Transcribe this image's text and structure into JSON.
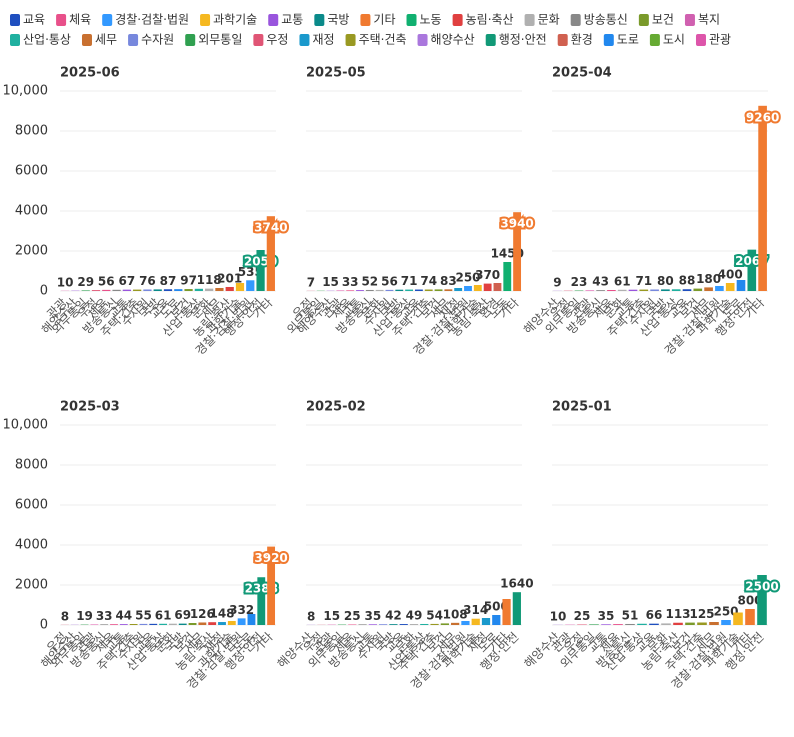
{
  "legend": [
    {
      "name": "교육",
      "color": "#1f4fbf"
    },
    {
      "name": "체육",
      "color": "#e8508a"
    },
    {
      "name": "경찰·검찰·법원",
      "color": "#3399ff"
    },
    {
      "name": "과학기술",
      "color": "#f5b820"
    },
    {
      "name": "교통",
      "color": "#9955dd"
    },
    {
      "name": "국방",
      "color": "#0a8a8a"
    },
    {
      "name": "기타",
      "color": "#f07a30"
    },
    {
      "name": "노동",
      "color": "#10b070"
    },
    {
      "name": "농림·축산",
      "color": "#e04040"
    },
    {
      "name": "문화",
      "color": "#b0b0b0"
    },
    {
      "name": "방송통신",
      "color": "#888888"
    },
    {
      "name": "보건",
      "color": "#7a9a2a"
    },
    {
      "name": "복지",
      "color": "#d060b0"
    },
    {
      "name": "산업·통상",
      "color": "#20b0a0"
    },
    {
      "name": "세무",
      "color": "#c87030"
    },
    {
      "name": "수자원",
      "color": "#7788dd"
    },
    {
      "name": "외무통일",
      "color": "#30a050"
    },
    {
      "name": "우정",
      "color": "#e05575"
    },
    {
      "name": "재정",
      "color": "#1a99cc"
    },
    {
      "name": "주택·건축",
      "color": "#999922"
    },
    {
      "name": "해양수산",
      "color": "#aa77dd"
    },
    {
      "name": "행정·안전",
      "color": "#119977"
    },
    {
      "name": "환경",
      "color": "#d06050"
    },
    {
      "name": "도로",
      "color": "#2288ee"
    },
    {
      "name": "도시",
      "color": "#66aa33"
    },
    {
      "name": "관광",
      "color": "#dd55aa"
    }
  ],
  "chart_data": [
    {
      "type": "bar",
      "title": "2025-06",
      "categories": [
        "관광",
        "해양수산",
        "외무통일",
        "우정",
        "체육",
        "방송통신",
        "교통",
        "주택·건축",
        "수자원",
        "국방",
        "교육",
        "도로",
        "보건",
        "산업·통상",
        "문화",
        "세무",
        "농림·축산",
        "과학기술",
        "경찰·검찰·법원",
        "행정·안전",
        "기타"
      ],
      "values": [
        10,
        20,
        29,
        45,
        56,
        60,
        67,
        70,
        76,
        80,
        87,
        92,
        97,
        110,
        118,
        150,
        201,
        400,
        535,
        2050,
        3740
      ],
      "ylim": [
        0,
        10000
      ],
      "yticks": [
        0,
        2000,
        4000,
        6000,
        8000,
        {
          "value": 10000,
          "label": "10,000"
        }
      ]
    },
    {
      "type": "bar",
      "title": "2025-05",
      "categories": [
        "우정",
        "외무통일",
        "해양수산",
        "관광",
        "체육",
        "교통",
        "방송통신",
        "문화",
        "수자원",
        "국방",
        "산업·통상",
        "교육",
        "주택·건축",
        "보건",
        "세무",
        "재정",
        "경찰·검찰·법원",
        "과학기술",
        "농림·축산",
        "환경",
        "노동",
        "기타"
      ],
      "values": [
        7,
        12,
        15,
        25,
        33,
        45,
        52,
        54,
        56,
        65,
        71,
        73,
        74,
        80,
        83,
        150,
        250,
        300,
        370,
        400,
        1450,
        3940
      ],
      "ylim": [
        0,
        10000
      ],
      "yticks": [
        0,
        2000,
        4000,
        6000,
        8000,
        {
          "value": 10000,
          "label": "10,000"
        }
      ]
    },
    {
      "type": "bar",
      "title": "2025-04",
      "categories": [
        "해양수산",
        "우정",
        "외무통일",
        "관광",
        "방송통신",
        "체육",
        "문화",
        "교통",
        "주택·건축",
        "수자원",
        "국방",
        "산업·통상",
        "교육",
        "보건",
        "세무",
        "경찰·검찰·법원",
        "과학기술",
        "도로",
        "행정·안전",
        "기타"
      ],
      "values": [
        9,
        15,
        23,
        30,
        43,
        50,
        61,
        65,
        71,
        75,
        80,
        85,
        88,
        120,
        180,
        251,
        400,
        550,
        2067,
        9260
      ],
      "ylim": [
        0,
        10000
      ],
      "yticks": [
        0,
        2000,
        4000,
        6000,
        8000,
        {
          "value": 10000,
          "label": "10,000"
        }
      ]
    },
    {
      "type": "bar",
      "title": "2025-03",
      "categories": [
        "우정",
        "해양수산",
        "외무통일",
        "관광",
        "방송통신",
        "체육",
        "교통",
        "주택·건축",
        "수자원",
        "교육",
        "산업·통상",
        "문화",
        "국방",
        "보건",
        "세무",
        "농림·축산",
        "재정",
        "과학기술",
        "경찰·검찰·법원",
        "도로",
        "행정·안전",
        "기타"
      ],
      "values": [
        8,
        12,
        19,
        25,
        33,
        40,
        44,
        50,
        55,
        58,
        61,
        65,
        69,
        100,
        126,
        140,
        148,
        200,
        332,
        550,
        2388,
        3920
      ],
      "ylim": [
        0,
        10000
      ],
      "yticks": [
        0,
        2000,
        4000,
        6000,
        8000,
        {
          "value": 10000,
          "label": "10,000"
        }
      ]
    },
    {
      "type": "bar",
      "title": "2025-02",
      "categories": [
        "해양수산",
        "우정",
        "관광",
        "외무통일",
        "체육",
        "방송통신",
        "교통",
        "수자원",
        "국방",
        "교육",
        "문화",
        "산업·통상",
        "주택·건축",
        "보건",
        "세무",
        "경찰·검찰·법원",
        "과학기술",
        "재정",
        "도로",
        "기타",
        "행정·안전"
      ],
      "values": [
        8,
        8,
        15,
        20,
        25,
        32,
        35,
        38,
        42,
        47,
        49,
        51,
        54,
        80,
        108,
        200,
        314,
        350,
        500,
        1300,
        1640
      ],
      "ylim": [
        0,
        10000
      ],
      "yticks": [
        0,
        2000,
        4000,
        6000,
        8000,
        {
          "value": 10000,
          "label": "10,000"
        }
      ]
    },
    {
      "type": "bar",
      "title": "2025-01",
      "categories": [
        "해양수산",
        "관광",
        "우정",
        "외무통일",
        "교통",
        "체육",
        "방송통신",
        "산업·통상",
        "교육",
        "문화",
        "농림·축산",
        "보건",
        "주택·건축",
        "세무",
        "경찰·검찰·법원",
        "과학기술",
        "기타",
        "행정·안전"
      ],
      "values": [
        10,
        15,
        25,
        30,
        35,
        45,
        51,
        62,
        66,
        80,
        113,
        120,
        125,
        150,
        250,
        624,
        800,
        2500
      ],
      "ylim": [
        0,
        10000
      ],
      "yticks": [
        0,
        2000,
        4000,
        6000,
        8000,
        {
          "value": 10000,
          "label": "10,000"
        }
      ]
    }
  ]
}
